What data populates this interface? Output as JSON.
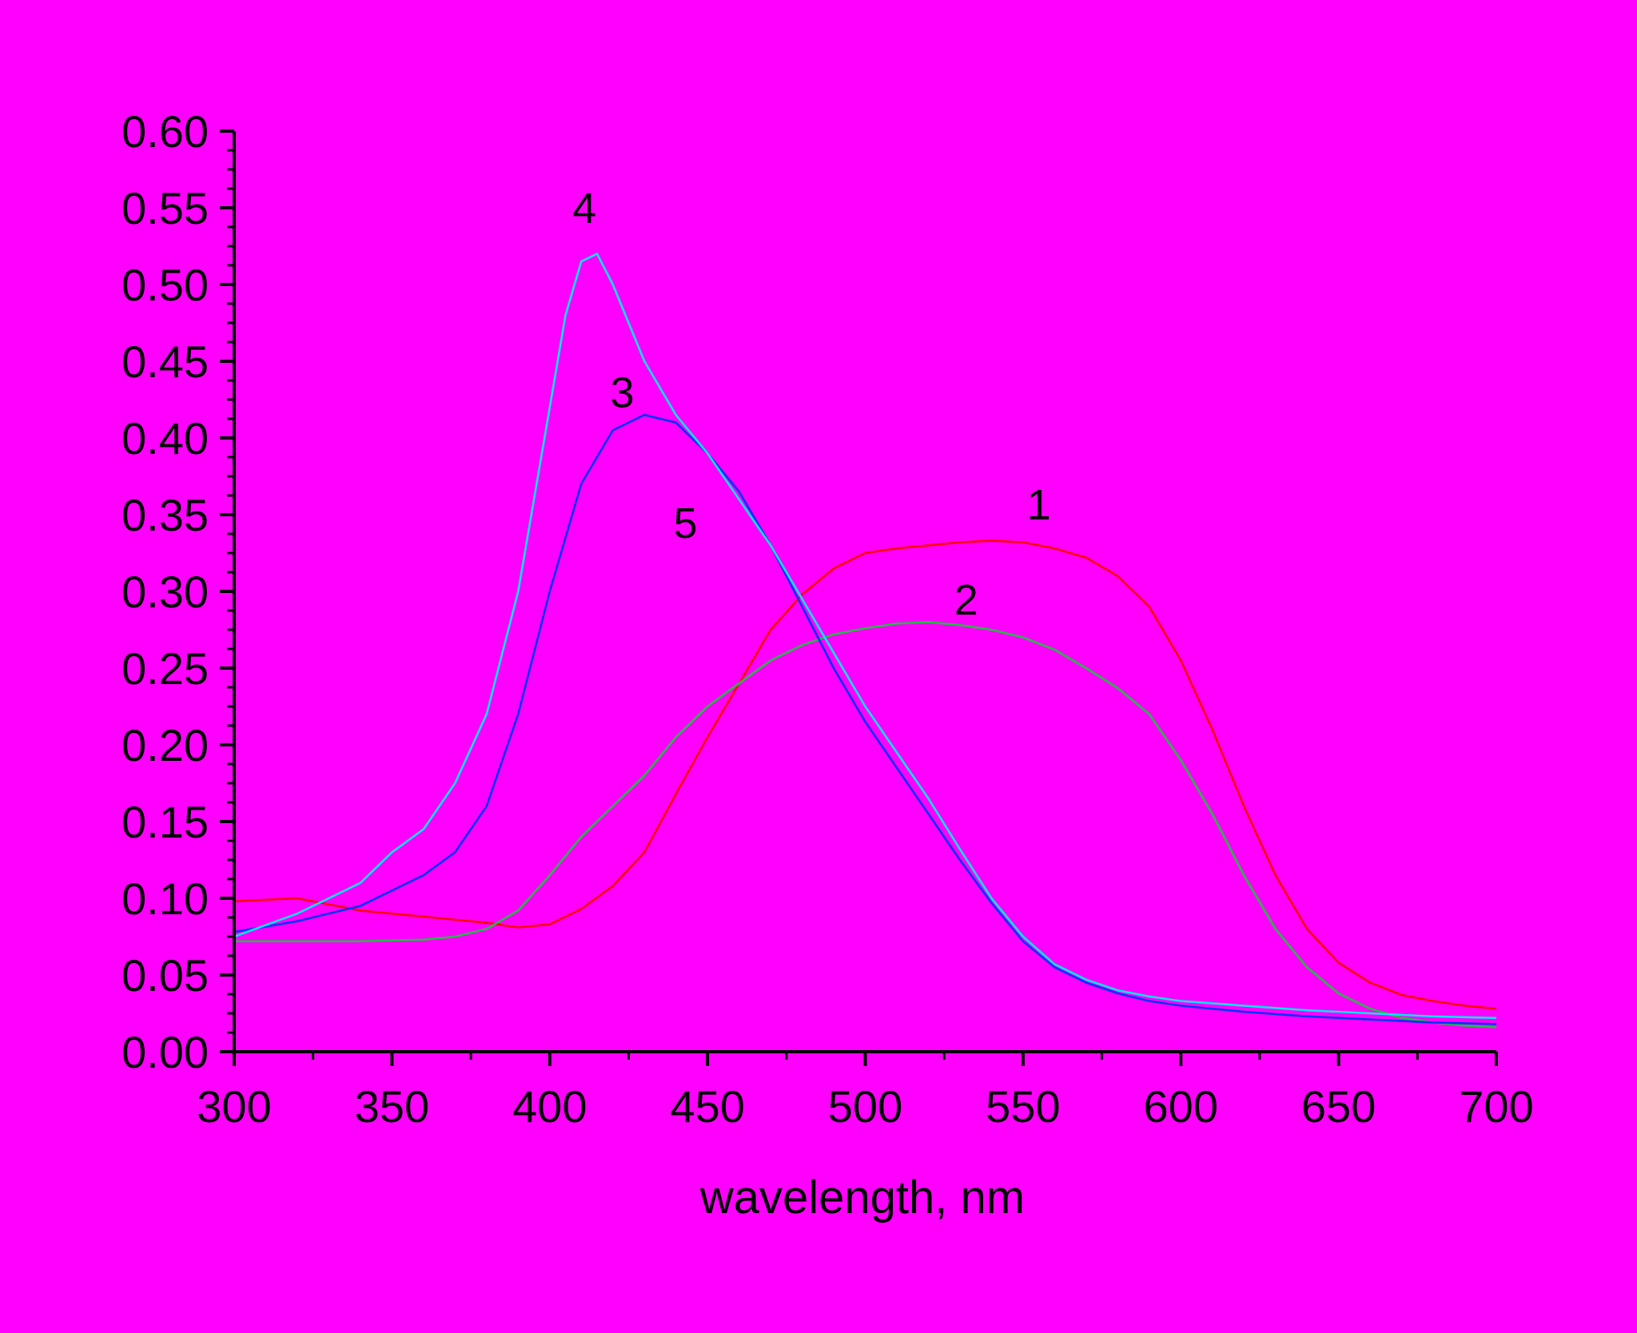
{
  "chart_data": {
    "type": "line",
    "title": "",
    "xlabel": "wavelength, nm",
    "ylabel": "",
    "xlim": [
      300,
      700
    ],
    "ylim": [
      0.0,
      0.6
    ],
    "x_ticks": [
      "300",
      "350",
      "400",
      "450",
      "500",
      "550",
      "600",
      "650",
      "700"
    ],
    "y_ticks": [
      "0.00",
      "0.05",
      "0.10",
      "0.15",
      "0.20",
      "0.25",
      "0.30",
      "0.35",
      "0.40",
      "0.45",
      "0.50",
      "0.55",
      "0.60"
    ],
    "grid": false,
    "legend": "none",
    "series": [
      {
        "label": "1",
        "color": "#ff0000",
        "x": [
          300,
          320,
          340,
          360,
          380,
          390,
          400,
          410,
          420,
          430,
          440,
          450,
          460,
          470,
          480,
          490,
          500,
          510,
          520,
          530,
          540,
          550,
          560,
          570,
          580,
          590,
          600,
          610,
          620,
          630,
          640,
          650,
          660,
          670,
          680,
          690,
          700
        ],
        "y": [
          0.098,
          0.1,
          0.092,
          0.088,
          0.084,
          0.081,
          0.083,
          0.093,
          0.108,
          0.13,
          0.168,
          0.205,
          0.24,
          0.275,
          0.298,
          0.315,
          0.325,
          0.328,
          0.33,
          0.332,
          0.333,
          0.332,
          0.328,
          0.322,
          0.31,
          0.29,
          0.255,
          0.21,
          0.16,
          0.115,
          0.08,
          0.058,
          0.045,
          0.037,
          0.033,
          0.03,
          0.028
        ]
      },
      {
        "label": "2",
        "color": "#22bb44",
        "x": [
          300,
          320,
          340,
          360,
          370,
          380,
          390,
          400,
          410,
          420,
          430,
          440,
          450,
          460,
          470,
          480,
          490,
          500,
          510,
          520,
          530,
          540,
          550,
          560,
          570,
          580,
          590,
          600,
          610,
          620,
          630,
          640,
          650,
          660,
          670,
          680,
          690,
          700
        ],
        "y": [
          0.072,
          0.072,
          0.072,
          0.073,
          0.075,
          0.08,
          0.092,
          0.115,
          0.14,
          0.16,
          0.18,
          0.205,
          0.225,
          0.24,
          0.255,
          0.265,
          0.272,
          0.276,
          0.279,
          0.28,
          0.278,
          0.275,
          0.27,
          0.262,
          0.25,
          0.237,
          0.22,
          0.19,
          0.155,
          0.115,
          0.08,
          0.055,
          0.038,
          0.028,
          0.022,
          0.019,
          0.017,
          0.016
        ]
      },
      {
        "label": "3",
        "color": "#0033ff",
        "x": [
          300,
          320,
          340,
          350,
          360,
          370,
          380,
          390,
          400,
          410,
          420,
          430,
          440,
          450,
          460,
          470,
          480,
          490,
          500,
          510,
          520,
          530,
          540,
          550,
          560,
          570,
          580,
          590,
          600,
          620,
          640,
          660,
          680,
          700
        ],
        "y": [
          0.078,
          0.085,
          0.095,
          0.105,
          0.115,
          0.13,
          0.16,
          0.22,
          0.3,
          0.37,
          0.405,
          0.415,
          0.41,
          0.39,
          0.365,
          0.33,
          0.29,
          0.25,
          0.215,
          0.185,
          0.155,
          0.125,
          0.097,
          0.072,
          0.055,
          0.045,
          0.038,
          0.033,
          0.03,
          0.026,
          0.023,
          0.021,
          0.019,
          0.018
        ]
      },
      {
        "label": "4",
        "color": "#00e5ff",
        "x": [
          300,
          320,
          340,
          350,
          360,
          370,
          380,
          390,
          400,
          405,
          410,
          415,
          420,
          430,
          440,
          450,
          460,
          470,
          480,
          490,
          500,
          510,
          520,
          530,
          540,
          550,
          560,
          570,
          580,
          590,
          600,
          620,
          640,
          660,
          680,
          700
        ],
        "y": [
          0.075,
          0.09,
          0.11,
          0.13,
          0.145,
          0.175,
          0.22,
          0.3,
          0.42,
          0.48,
          0.515,
          0.52,
          0.5,
          0.45,
          0.415,
          0.39,
          0.36,
          0.33,
          0.295,
          0.26,
          0.225,
          0.195,
          0.165,
          0.132,
          0.1,
          0.075,
          0.057,
          0.047,
          0.04,
          0.036,
          0.033,
          0.03,
          0.027,
          0.025,
          0.023,
          0.022
        ]
      }
    ],
    "annotations": [
      {
        "text": "1",
        "x": 555,
        "y": 0.347
      },
      {
        "text": "2",
        "x": 532,
        "y": 0.285
      },
      {
        "text": "3",
        "x": 423,
        "y": 0.42
      },
      {
        "text": "4",
        "x": 411,
        "y": 0.54
      },
      {
        "text": "5",
        "x": 443,
        "y": 0.335
      }
    ]
  }
}
